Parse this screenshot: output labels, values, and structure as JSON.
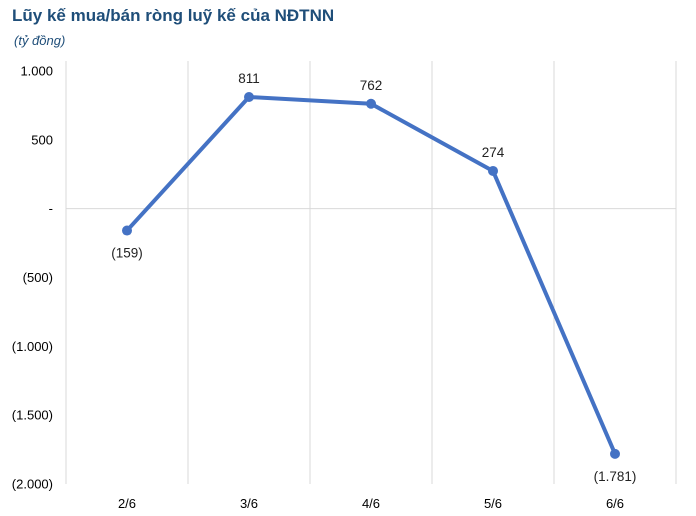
{
  "title": "Lũy kế mua/bán ròng luỹ kế của NĐTNN",
  "subtitle": "(tỷ đồng)",
  "chart_data": {
    "type": "line",
    "title": "Lũy kế mua/bán ròng luỹ kế của NĐTNN",
    "subtitle": "(tỷ đồng)",
    "categories": [
      "2/6",
      "3/6",
      "4/6",
      "5/6",
      "6/6"
    ],
    "values": [
      -159,
      811,
      762,
      274,
      -1781
    ],
    "data_labels": [
      "(159)",
      "811",
      "762",
      "274",
      "(1.781)"
    ],
    "ylim": [
      -2000,
      1000
    ],
    "yticks": [
      {
        "value": 1000,
        "label": "1.000"
      },
      {
        "value": 500,
        "label": "500"
      },
      {
        "value": 0,
        "label": "-"
      },
      {
        "value": -500,
        "label": "(500)"
      },
      {
        "value": -1000,
        "label": "(1.000)"
      },
      {
        "value": -1500,
        "label": "(1.500)"
      },
      {
        "value": -2000,
        "label": "(2.000)"
      }
    ],
    "grid": "vertical",
    "line_color": "#4472c4",
    "xlabel": "",
    "ylabel": ""
  }
}
